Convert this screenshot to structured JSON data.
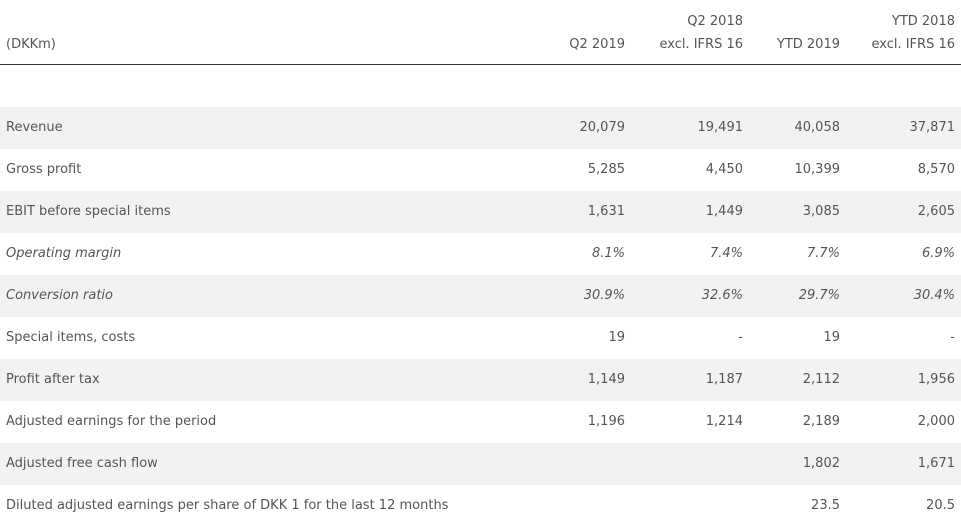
{
  "header": {
    "unit": "(DKKm)",
    "columns": [
      {
        "line1": "",
        "line2": "Q2 2019"
      },
      {
        "line1": "Q2 2018",
        "line2": "excl. IFRS 16"
      },
      {
        "line1": "",
        "line2": "YTD 2019"
      },
      {
        "line1": "YTD 2018",
        "line2": "excl. IFRS 16"
      }
    ]
  },
  "rows": [
    {
      "label": "Revenue",
      "values": [
        "20,079",
        "19,491",
        "40,058",
        "37,871"
      ],
      "style": "normal"
    },
    {
      "label": "Gross profit",
      "values": [
        "5,285",
        "4,450",
        "10,399",
        "8,570"
      ],
      "style": "normal"
    },
    {
      "label": "EBIT before special items",
      "values": [
        "1,631",
        "1,449",
        "3,085",
        "2,605"
      ],
      "style": "normal"
    },
    {
      "label": "Operating margin",
      "values": [
        "8.1%",
        "7.4%",
        "7.7%",
        "6.9%"
      ],
      "style": "italic"
    },
    {
      "label": "Conversion ratio",
      "values": [
        "30.9%",
        "32.6%",
        "29.7%",
        "30.4%"
      ],
      "style": "italic"
    },
    {
      "label": "Special items, costs",
      "values": [
        "19",
        "-",
        "19",
        "-"
      ],
      "style": "normal"
    },
    {
      "label": "Profit after tax",
      "values": [
        "1,149",
        "1,187",
        "2,112",
        "1,956"
      ],
      "style": "normal"
    },
    {
      "label": "Adjusted earnings for the period",
      "values": [
        "1,196",
        "1,214",
        "2,189",
        "2,000"
      ],
      "style": "normal"
    },
    {
      "label": "Adjusted free cash flow",
      "values": [
        "",
        "",
        "1,802",
        "1,671"
      ],
      "style": "normal"
    },
    {
      "label": "Diluted adjusted earnings per share of DKK 1 for the last 12 months",
      "values": [
        "",
        "",
        "23.5",
        "20.5"
      ],
      "style": "normal"
    }
  ],
  "colors": {
    "row_shade": "#f2f2f2",
    "text": "#555555",
    "header_rule": "#333333"
  }
}
